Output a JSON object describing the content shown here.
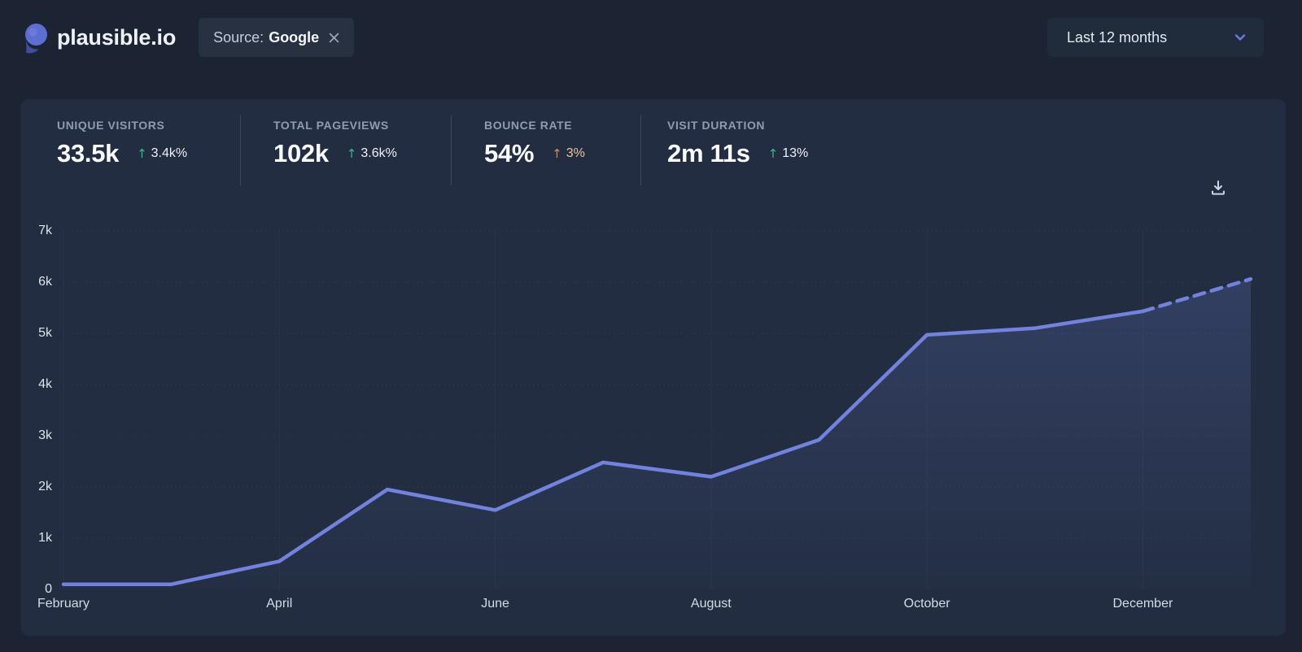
{
  "header": {
    "site_name": "plausible.io",
    "filter_chip": {
      "prefix": "Source:",
      "value": "Google",
      "remove_icon": "close-icon"
    },
    "date_range_selector": {
      "value": "Last 12 months",
      "icon": "chevron-down-icon"
    }
  },
  "stats": {
    "items": [
      {
        "label": "UNIQUE VISITORS",
        "value": "33.5k",
        "arrow": "↑",
        "delta": "3.4k%",
        "sentiment": "positive"
      },
      {
        "label": "TOTAL PAGEVIEWS",
        "value": "102k",
        "arrow": "↑",
        "delta": "3.6k%",
        "sentiment": "positive"
      },
      {
        "label": "BOUNCE RATE",
        "value": "54%",
        "arrow": "↑",
        "delta": "3%",
        "sentiment": "negative"
      },
      {
        "label": "VISIT DURATION",
        "value": "2m 11s",
        "arrow": "↑",
        "delta": "13%",
        "sentiment": "positive"
      }
    ]
  },
  "toolbar": {
    "download_icon": "download-icon"
  },
  "chart_data": {
    "type": "line",
    "title": "",
    "xlabel": "",
    "ylabel": "",
    "x": [
      "February",
      "March",
      "April",
      "May",
      "June",
      "July",
      "August",
      "September",
      "October",
      "November",
      "December",
      "January"
    ],
    "x_tick_labels": [
      "February",
      "April",
      "June",
      "August",
      "October",
      "December"
    ],
    "x_tick_month_indexes": [
      0,
      2,
      4,
      6,
      8,
      10
    ],
    "series": [
      {
        "name": "Unique visitors",
        "values": [
          100,
          100,
          550,
          1950,
          1550,
          2480,
          2200,
          2920,
          4970,
          5100,
          5430,
          6060
        ],
        "last_segment_style": "dashed"
      }
    ],
    "ylim": [
      0,
      7000
    ],
    "y_tick_step": 1000,
    "y_tick_labels": [
      "0",
      "1k",
      "2k",
      "3k",
      "4k",
      "5k",
      "6k",
      "7k"
    ],
    "grid": "dotted-horizontal",
    "legend": "none",
    "area_fill": true
  },
  "colors": {
    "page_bg": "#1c2434",
    "panel_bg": "#222d41",
    "chip_bg": "#283142",
    "accent_line": "#7282dd",
    "area_fill_top": "rgba(114,132,222,0.24)",
    "area_fill_bottom": "rgba(114,132,222,0.02)",
    "positive_delta": "#2fbd8e",
    "negative_delta": "#d68d51",
    "text_primary": "#fafcfe",
    "text_muted": "#8e9cb2"
  }
}
